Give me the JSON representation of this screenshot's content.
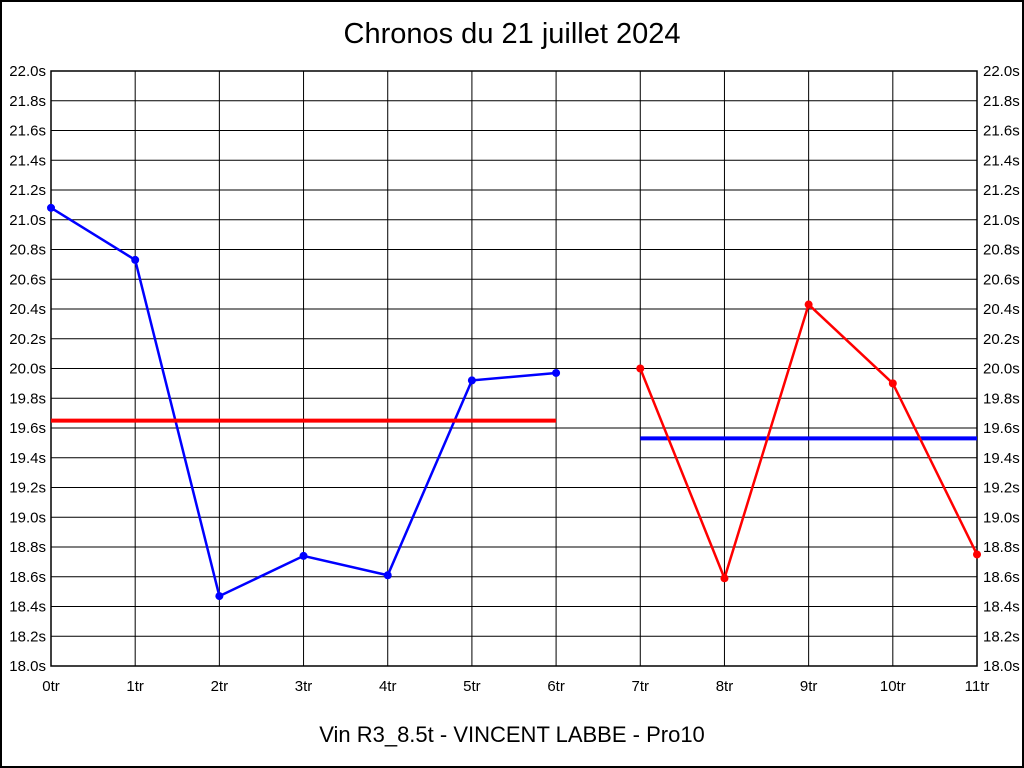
{
  "title": "Chronos du 21 juillet 2024",
  "footer": "Vin R3_8.5t - VINCENT LABBE - Pro10",
  "colors": {
    "series_1": "#0000ff",
    "series_2": "#ff0000",
    "grid": "#000000",
    "background": "#ffffff",
    "text": "#000000"
  },
  "chart_data": {
    "type": "line",
    "title": "Chronos du 21 juillet 2024",
    "footer": "Vin R3_8.5t - VINCENT LABBE - Pro10",
    "xlabel": "",
    "ylabel": "",
    "xlim": [
      0,
      11
    ],
    "ylim": [
      18.0,
      22.0
    ],
    "y_step": 0.2,
    "grid": true,
    "legend_position": "none",
    "y_tick_labels": [
      "22.0s",
      "21.8s",
      "21.6s",
      "21.4s",
      "21.2s",
      "21.0s",
      "20.8s",
      "20.6s",
      "20.4s",
      "20.2s",
      "20.0s",
      "19.8s",
      "19.6s",
      "19.4s",
      "19.2s",
      "19.0s",
      "18.8s",
      "18.6s",
      "18.4s",
      "18.2s",
      "18.0s"
    ],
    "y_axis_labels_both_sides": true,
    "x_tick_labels": [
      "0tr",
      "1tr",
      "2tr",
      "3tr",
      "4tr",
      "5tr",
      "6tr",
      "7tr",
      "8tr",
      "9tr",
      "10tr",
      "11tr"
    ],
    "series": [
      {
        "name": "series-1",
        "color": "#0000ff",
        "x": [
          0,
          1,
          2,
          3,
          4,
          5,
          6
        ],
        "values": [
          21.08,
          20.73,
          18.47,
          18.74,
          18.61,
          19.92,
          19.97
        ]
      },
      {
        "name": "series-2",
        "color": "#ff0000",
        "x": [
          7,
          8,
          9,
          10,
          11
        ],
        "values": [
          20.0,
          18.59,
          20.43,
          19.9,
          18.75
        ]
      }
    ],
    "reference_lines": [
      {
        "name": "average-series-1",
        "color": "#ff0000",
        "value": 19.65,
        "x_start": 0,
        "x_end": 6
      },
      {
        "name": "average-series-2",
        "color": "#0000ff",
        "value": 19.53,
        "x_start": 7,
        "x_end": 11
      }
    ]
  }
}
